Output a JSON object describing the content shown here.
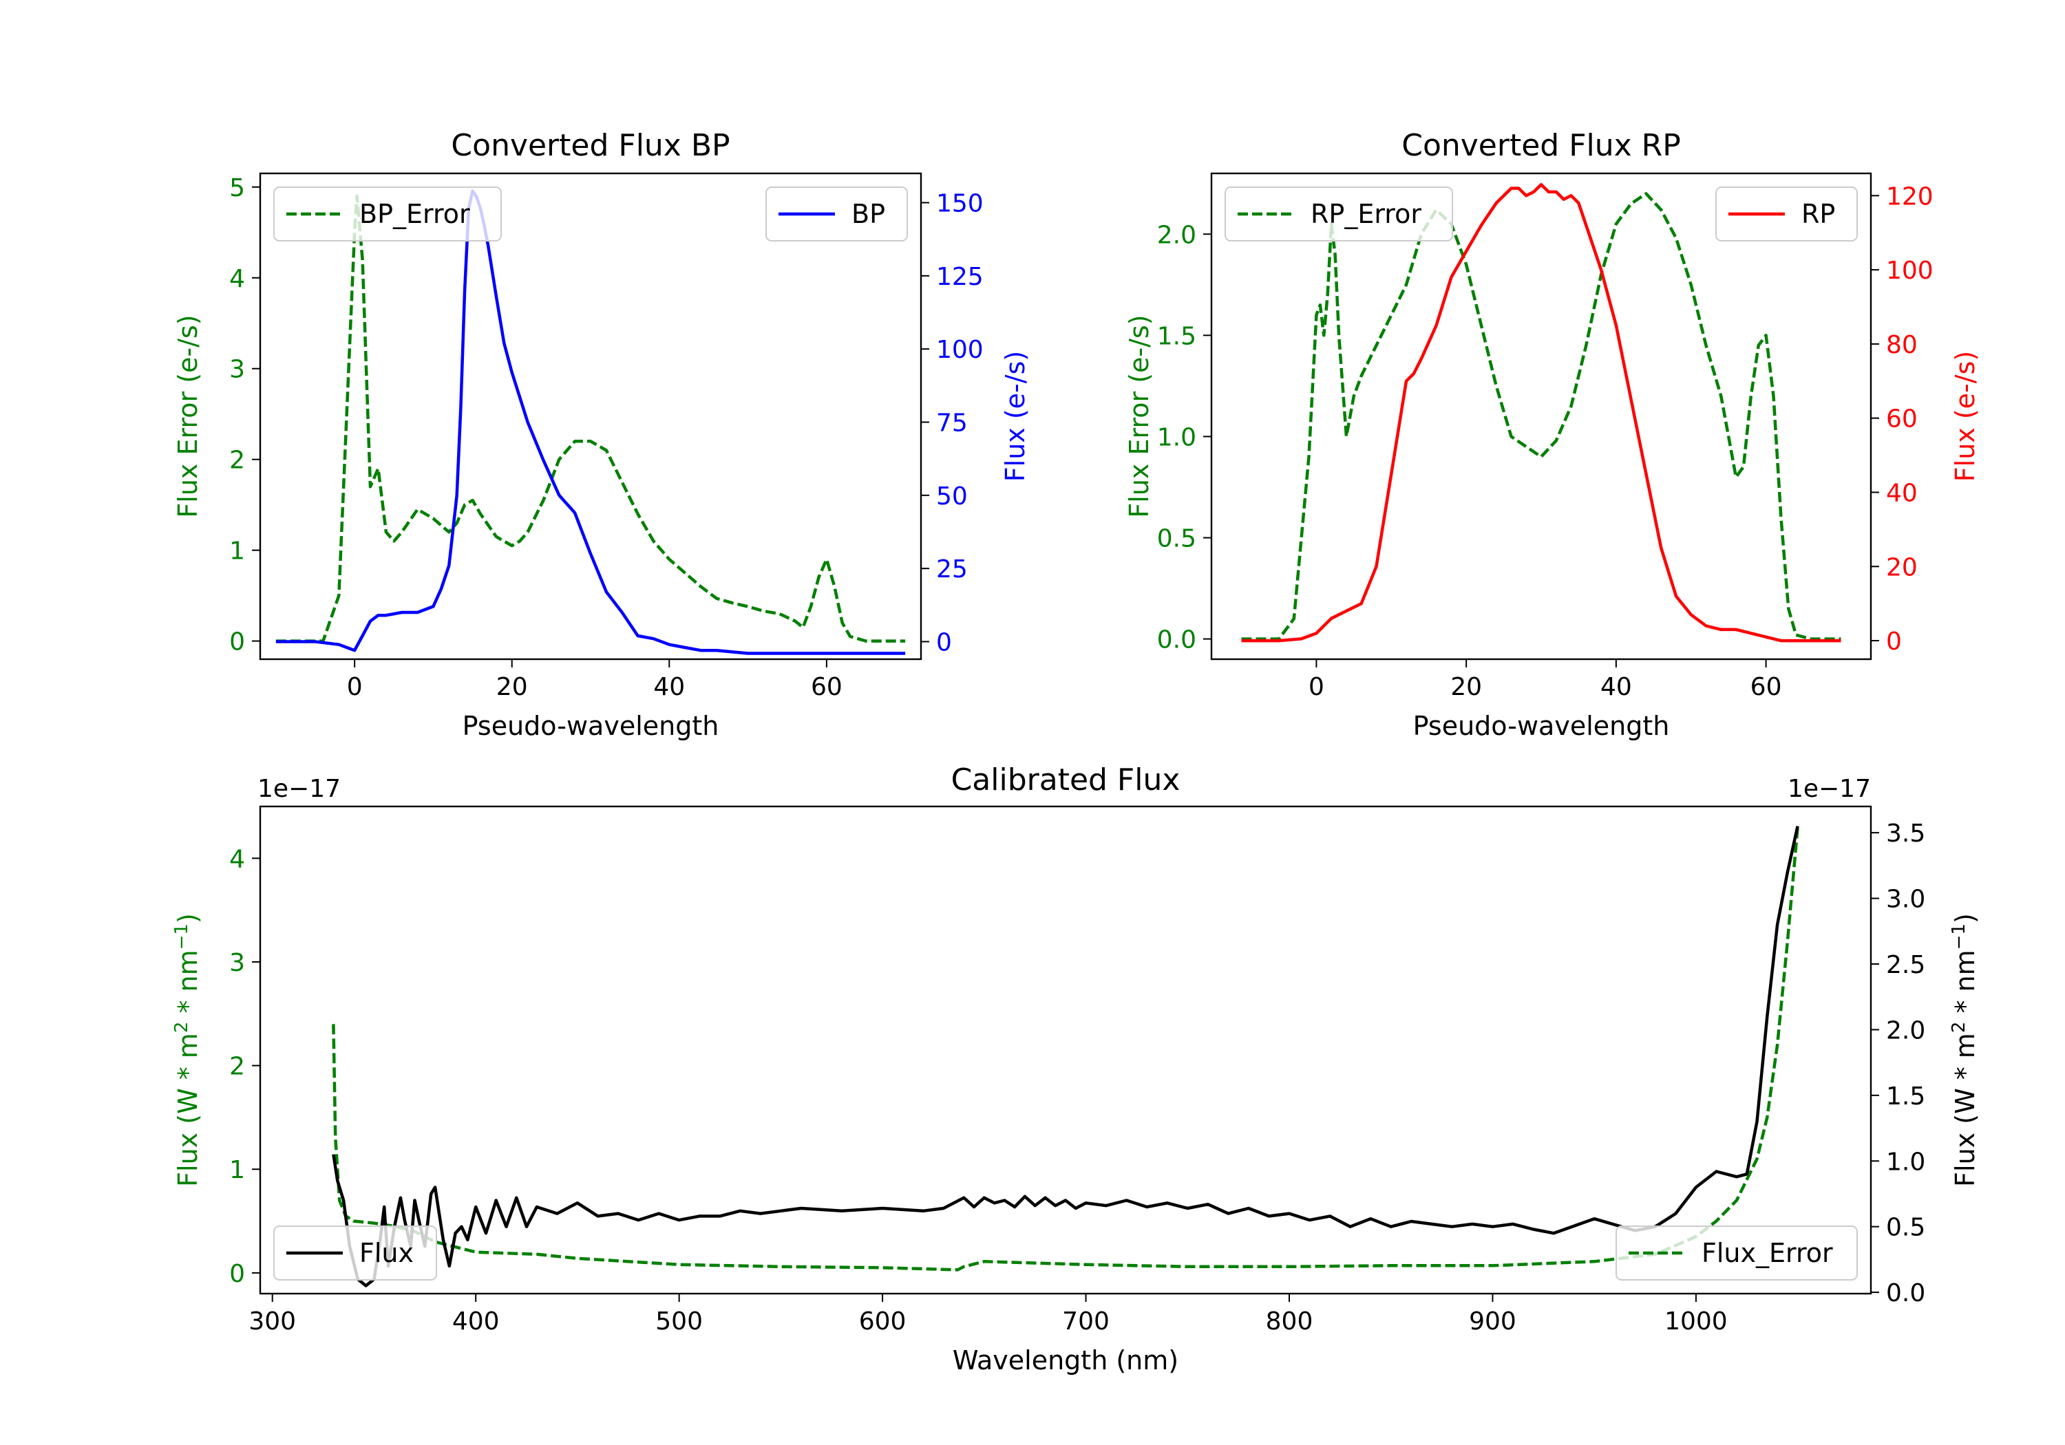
{
  "colors": {
    "bp": "#0000ff",
    "rp": "#ff0000",
    "error": "#008000",
    "flux": "#000000",
    "axis": "#000000"
  },
  "chart_data": [
    {
      "id": "bp",
      "type": "line",
      "title": "Converted Flux BP",
      "xlabel": "Pseudo-wavelength",
      "ylabel_left": "Flux Error (e-/s)",
      "ylabel_right": "Flux (e-/s)",
      "xlim": [
        -12,
        72
      ],
      "xticks": [
        0,
        20,
        40,
        60
      ],
      "ylim_left": [
        -0.2,
        5.15
      ],
      "yticks_left": [
        0,
        1,
        2,
        3,
        4,
        5
      ],
      "ylim_right": [
        -6,
        160
      ],
      "yticks_right": [
        0,
        25,
        50,
        75,
        100,
        125,
        150
      ],
      "legend_left": {
        "label": "BP_Error",
        "position": "upper left",
        "style": "dashed"
      },
      "legend_right": {
        "label": "BP",
        "position": "upper right",
        "style": "solid"
      },
      "series": [
        {
          "name": "BP_Error",
          "axis": "left",
          "style": "dashed",
          "color": "#008000",
          "x": [
            -10,
            -4,
            -2,
            -1,
            0,
            0.3,
            1,
            2,
            3,
            4,
            5,
            6,
            8,
            10,
            12,
            13,
            14,
            15,
            16,
            18,
            20,
            21,
            22,
            24,
            26,
            28,
            30,
            32,
            34,
            36,
            38,
            40,
            42,
            44,
            46,
            48,
            50,
            52,
            54,
            56,
            57,
            58,
            59,
            60,
            61,
            62,
            63,
            65,
            70
          ],
          "y": [
            0,
            0,
            0.5,
            2.5,
            4.5,
            4.9,
            4.2,
            1.7,
            1.9,
            1.2,
            1.1,
            1.2,
            1.45,
            1.35,
            1.2,
            1.3,
            1.5,
            1.55,
            1.4,
            1.15,
            1.05,
            1.1,
            1.2,
            1.55,
            2.0,
            2.2,
            2.2,
            2.1,
            1.75,
            1.4,
            1.1,
            0.9,
            0.75,
            0.6,
            0.47,
            0.42,
            0.38,
            0.33,
            0.3,
            0.22,
            0.15,
            0.38,
            0.7,
            0.9,
            0.6,
            0.2,
            0.05,
            0,
            0
          ]
        },
        {
          "name": "BP",
          "axis": "right",
          "style": "solid",
          "color": "#0000ff",
          "x": [
            -10,
            -5,
            -2,
            0,
            1,
            2,
            3,
            4,
            6,
            8,
            10,
            11,
            12,
            13,
            13.5,
            14,
            14.5,
            15,
            15.5,
            16,
            16.5,
            17,
            18,
            19,
            20,
            22,
            24,
            26,
            28,
            30,
            32,
            34,
            36,
            38,
            40,
            42,
            44,
            46,
            50,
            55,
            60,
            65,
            70
          ],
          "y": [
            0,
            0,
            -1,
            -3,
            2,
            7,
            9,
            9,
            10,
            10,
            12,
            18,
            26,
            50,
            80,
            120,
            148,
            154,
            152,
            148,
            142,
            135,
            118,
            102,
            92,
            75,
            62,
            50,
            44,
            30,
            17,
            10,
            2,
            1,
            -1,
            -2,
            -3,
            -3,
            -4,
            -4,
            -4,
            -4,
            -4
          ]
        }
      ]
    },
    {
      "id": "rp",
      "type": "line",
      "title": "Converted Flux RP",
      "xlabel": "Pseudo-wavelength",
      "ylabel_left": "Flux Error (e-/s)",
      "ylabel_right": "Flux (e-/s)",
      "xlim": [
        -14,
        74
      ],
      "xticks": [
        0,
        20,
        40,
        60
      ],
      "ylim_left": [
        -0.1,
        2.3
      ],
      "yticks_left": [
        0.0,
        0.5,
        1.0,
        1.5,
        2.0
      ],
      "ylim_right": [
        -5,
        126
      ],
      "yticks_right": [
        0,
        20,
        40,
        60,
        80,
        100,
        120
      ],
      "legend_left": {
        "label": "RP_Error",
        "position": "upper left",
        "style": "dashed"
      },
      "legend_right": {
        "label": "RP",
        "position": "upper right",
        "style": "solid"
      },
      "series": [
        {
          "name": "RP_Error",
          "axis": "left",
          "style": "dashed",
          "color": "#008000",
          "x": [
            -10,
            -5,
            -3,
            -1,
            0,
            0.5,
            1,
            1.5,
            2,
            2.5,
            3,
            4,
            5,
            6,
            8,
            10,
            12,
            14,
            16,
            18,
            20,
            22,
            24,
            26,
            28,
            30,
            32,
            34,
            36,
            38,
            40,
            42,
            44,
            46,
            48,
            50,
            52,
            54,
            55,
            56,
            57,
            58,
            59,
            60,
            61,
            62,
            63,
            64,
            66,
            70
          ],
          "y": [
            0,
            0,
            0.1,
            0.9,
            1.6,
            1.65,
            1.5,
            1.7,
            2.05,
            1.9,
            1.5,
            1.0,
            1.2,
            1.3,
            1.45,
            1.6,
            1.75,
            2.0,
            2.12,
            2.05,
            1.85,
            1.55,
            1.25,
            1.0,
            0.95,
            0.9,
            0.98,
            1.15,
            1.45,
            1.8,
            2.05,
            2.15,
            2.2,
            2.12,
            1.98,
            1.75,
            1.45,
            1.2,
            1.0,
            0.8,
            0.85,
            1.2,
            1.45,
            1.5,
            1.2,
            0.6,
            0.15,
            0.02,
            0,
            0
          ]
        },
        {
          "name": "RP",
          "axis": "right",
          "style": "solid",
          "color": "#ff0000",
          "x": [
            -10,
            -5,
            -2,
            0,
            2,
            4,
            6,
            8,
            10,
            12,
            13,
            14,
            16,
            18,
            20,
            22,
            24,
            26,
            27,
            28,
            29,
            30,
            31,
            32,
            33,
            34,
            35,
            36,
            38,
            40,
            42,
            44,
            46,
            48,
            50,
            52,
            54,
            56,
            58,
            60,
            62,
            65,
            70
          ],
          "y": [
            0,
            0,
            0.5,
            2,
            6,
            8,
            10,
            20,
            45,
            70,
            72,
            76,
            85,
            98,
            105,
            112,
            118,
            122,
            122,
            120,
            121,
            123,
            121,
            121,
            119,
            120,
            118,
            112,
            100,
            85,
            65,
            45,
            25,
            12,
            7,
            4,
            3,
            3,
            2,
            1,
            0,
            0,
            0
          ]
        }
      ]
    },
    {
      "id": "calibrated",
      "type": "line",
      "title": "Calibrated Flux",
      "xlabel": "Wavelength (nm)",
      "ylabel_left": "Flux (W * m^2 * nm^-1)",
      "ylabel_right": "Flux (W * m^2 * nm^-1)",
      "sci_left": "1e−17",
      "sci_right": "1e−17",
      "xlim": [
        294,
        1086
      ],
      "xticks": [
        300,
        400,
        500,
        600,
        700,
        800,
        900,
        1000
      ],
      "ylim_left": [
        -0.2,
        4.5
      ],
      "yticks_left": [
        0,
        1,
        2,
        3,
        4
      ],
      "ylim_right": [
        -0.01,
        3.7
      ],
      "yticks_right": [
        "0.0",
        "0.5",
        "1.0",
        "1.5",
        "2.0",
        "2.5",
        "3.0",
        "3.5"
      ],
      "legend_left": {
        "label": "Flux",
        "position": "lower left",
        "style": "solid"
      },
      "legend_right": {
        "label": "Flux_Error",
        "position": "lower right",
        "style": "dashed"
      },
      "series": [
        {
          "name": "Flux_Error",
          "axis": "left",
          "style": "dashed",
          "color": "#008000",
          "x": [
            330,
            331,
            333,
            336,
            340,
            350,
            360,
            370,
            380,
            390,
            400,
            430,
            450,
            500,
            550,
            600,
            637,
            640,
            650,
            700,
            750,
            800,
            850,
            900,
            950,
            980,
            1000,
            1010,
            1020,
            1030,
            1035,
            1040,
            1045,
            1050
          ],
          "y": [
            2.4,
            1.3,
            0.7,
            0.55,
            0.5,
            0.48,
            0.45,
            0.4,
            0.3,
            0.25,
            0.2,
            0.18,
            0.14,
            0.08,
            0.06,
            0.05,
            0.03,
            0.06,
            0.11,
            0.08,
            0.06,
            0.06,
            0.07,
            0.07,
            0.11,
            0.18,
            0.35,
            0.5,
            0.7,
            1.1,
            1.5,
            2.2,
            3.2,
            4.3
          ]
        },
        {
          "name": "Flux",
          "axis": "right",
          "style": "solid",
          "color": "#000000",
          "x": [
            330,
            332,
            335,
            338,
            342,
            346,
            350,
            353,
            355,
            357,
            360,
            363,
            365,
            368,
            370,
            372,
            375,
            378,
            380,
            382,
            384,
            387,
            390,
            393,
            396,
            400,
            405,
            410,
            415,
            420,
            425,
            430,
            440,
            450,
            460,
            470,
            480,
            490,
            500,
            510,
            520,
            530,
            540,
            550,
            560,
            570,
            580,
            590,
            600,
            610,
            620,
            630,
            640,
            645,
            650,
            655,
            660,
            665,
            670,
            675,
            680,
            685,
            690,
            695,
            700,
            710,
            720,
            730,
            740,
            750,
            760,
            770,
            780,
            790,
            800,
            810,
            820,
            830,
            840,
            850,
            860,
            870,
            880,
            890,
            900,
            910,
            920,
            930,
            950,
            970,
            980,
            990,
            1000,
            1010,
            1020,
            1025,
            1030,
            1035,
            1040,
            1045,
            1050
          ],
          "y": [
            1.05,
            0.85,
            0.7,
            0.35,
            0.1,
            0.05,
            0.1,
            0.4,
            0.65,
            0.2,
            0.5,
            0.72,
            0.55,
            0.35,
            0.7,
            0.55,
            0.35,
            0.75,
            0.8,
            0.6,
            0.4,
            0.2,
            0.45,
            0.5,
            0.4,
            0.65,
            0.45,
            0.7,
            0.5,
            0.72,
            0.5,
            0.65,
            0.6,
            0.68,
            0.58,
            0.6,
            0.55,
            0.6,
            0.55,
            0.58,
            0.58,
            0.62,
            0.6,
            0.62,
            0.64,
            0.63,
            0.62,
            0.63,
            0.64,
            0.63,
            0.62,
            0.64,
            0.72,
            0.65,
            0.72,
            0.68,
            0.7,
            0.65,
            0.73,
            0.66,
            0.72,
            0.66,
            0.7,
            0.64,
            0.68,
            0.66,
            0.7,
            0.65,
            0.68,
            0.64,
            0.67,
            0.6,
            0.64,
            0.58,
            0.6,
            0.55,
            0.58,
            0.5,
            0.56,
            0.5,
            0.54,
            0.52,
            0.5,
            0.52,
            0.5,
            0.52,
            0.48,
            0.45,
            0.56,
            0.47,
            0.5,
            0.6,
            0.8,
            0.92,
            0.88,
            0.9,
            1.3,
            2.1,
            2.8,
            3.2,
            3.55
          ]
        }
      ]
    }
  ]
}
